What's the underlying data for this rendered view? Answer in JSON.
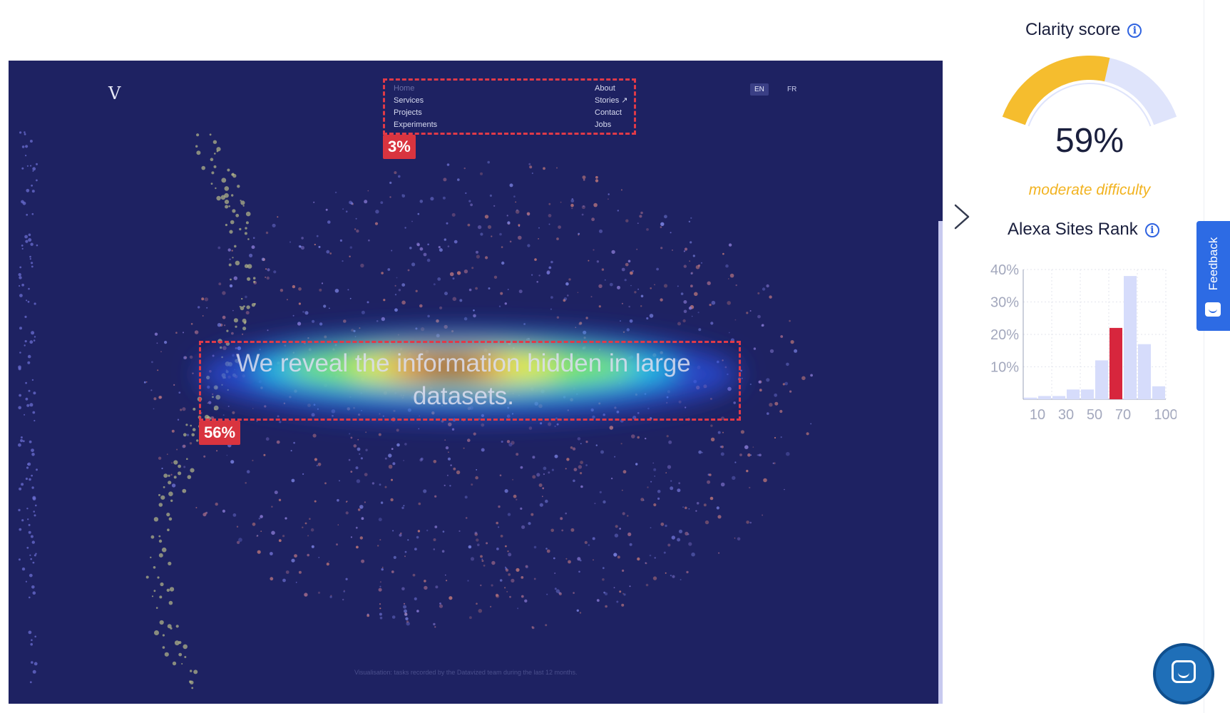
{
  "site": {
    "logo": "V",
    "nav_left": [
      "Home",
      "Services",
      "Projects",
      "Experiments"
    ],
    "nav_right": [
      "About",
      "Stories ↗",
      "Contact",
      "Jobs"
    ],
    "languages": [
      "EN",
      "FR"
    ],
    "active_language": "EN",
    "hero_text": "We reveal the information hidden in large datasets.",
    "footnote": "Visualisation: tasks recorded by the Datavized team during the last 12 months."
  },
  "aoi": [
    {
      "name": "navigation",
      "percent": "3%"
    },
    {
      "name": "headline",
      "percent": "56%"
    }
  ],
  "clarity": {
    "title": "Clarity score",
    "value": 59,
    "value_label": "59%",
    "difficulty": "moderate difficulty",
    "colors": {
      "fill": "#f5bd2e",
      "track": "#dfe4fb"
    }
  },
  "alexa": {
    "title": "Alexa Sites Rank"
  },
  "chart_data": {
    "type": "bar",
    "x": [
      5,
      15,
      25,
      35,
      45,
      55,
      65,
      75,
      85,
      95
    ],
    "values": [
      0.5,
      1,
      1,
      3,
      3,
      12,
      22,
      38,
      17,
      4
    ],
    "highlight_index": 6,
    "xticks": [
      "10",
      "30",
      "50",
      "70",
      "100"
    ],
    "yticks": [
      "40%",
      "30%",
      "20%",
      "10%"
    ],
    "ylim": [
      0,
      40
    ],
    "grid": true,
    "colors": {
      "bar": "#d6dcfb",
      "highlight": "#d7263d"
    }
  },
  "feedback": {
    "label": "Feedback"
  }
}
